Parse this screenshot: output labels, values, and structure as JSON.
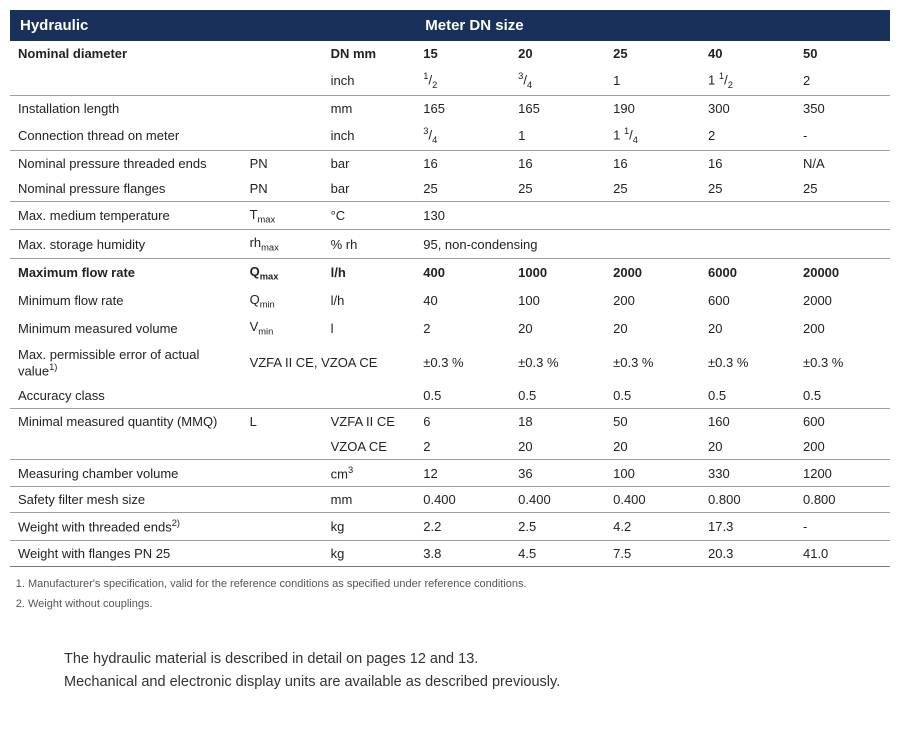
{
  "header": {
    "left": "Hydraulic",
    "right": "Meter DN size"
  },
  "colhead": {
    "label": "Nominal diameter",
    "unit_label": "DN mm",
    "inch_label": "inch",
    "dn": [
      "15",
      "20",
      "25",
      "40",
      "50"
    ],
    "inch": [
      "1/2",
      "3/4",
      "1",
      "1 1/2",
      "2"
    ]
  },
  "rows": {
    "instlen": {
      "label": "Installation length",
      "unit": "mm",
      "v": [
        "165",
        "165",
        "190",
        "300",
        "350"
      ]
    },
    "thread": {
      "label": "Connection thread on meter",
      "unit": "inch",
      "v": [
        "3/4",
        "1",
        "1 1/4",
        "2",
        "-"
      ]
    },
    "npt": {
      "label": "Nominal pressure threaded ends",
      "sym": "PN",
      "unit": "bar",
      "v": [
        "16",
        "16",
        "16",
        "16",
        "N/A"
      ]
    },
    "npf": {
      "label": "Nominal pressure flanges",
      "sym": "PN",
      "unit": "bar",
      "v": [
        "25",
        "25",
        "25",
        "25",
        "25"
      ]
    },
    "tmax": {
      "label": "Max. medium temperature",
      "sym": "T",
      "sub": "max",
      "unit": "°C",
      "span": "130"
    },
    "rh": {
      "label": "Max. storage humidity",
      "sym": "rh",
      "sub": "max",
      "unit": "% rh",
      "span": "95, non-condensing"
    },
    "qmax": {
      "label": "Maximum flow rate",
      "sym": "Q",
      "sub": "max",
      "unit": "l/h",
      "v": [
        "400",
        "1000",
        "2000",
        "6000",
        "20000"
      ]
    },
    "qmin": {
      "label": "Minimum flow rate",
      "sym": "Q",
      "sub": "min",
      "unit": "l/h",
      "v": [
        "40",
        "100",
        "200",
        "600",
        "2000"
      ]
    },
    "vmin": {
      "label": "Minimum measured volume",
      "sym": "V",
      "sub": "min",
      "unit": "l",
      "v": [
        "2",
        "20",
        "20",
        "20",
        "200"
      ]
    },
    "perr": {
      "label": "Max. permissible error of actual value",
      "sup": "1)",
      "sym": "VZFA II CE, VZOA CE",
      "v": [
        "±0.3 %",
        "±0.3 %",
        "±0.3 %",
        "±0.3 %",
        "±0.3 %"
      ]
    },
    "acc": {
      "label": "Accuracy class",
      "v": [
        "0.5",
        "0.5",
        "0.5",
        "0.5",
        "0.5"
      ]
    },
    "mmq1": {
      "label": "Minimal measured quantity (MMQ)",
      "sym": "L",
      "unit": "VZFA II CE",
      "v": [
        "6",
        "18",
        "50",
        "160",
        "600"
      ]
    },
    "mmq2": {
      "unit": "VZOA CE",
      "v": [
        "2",
        "20",
        "20",
        "20",
        "200"
      ]
    },
    "mcv": {
      "label": "Measuring chamber volume",
      "unit": "cm",
      "sup_unit": "3",
      "v": [
        "12",
        "36",
        "100",
        "330",
        "1200"
      ]
    },
    "mesh": {
      "label": "Safety filter mesh size",
      "unit": "mm",
      "v": [
        "0.400",
        "0.400",
        "0.400",
        "0.800",
        "0.800"
      ]
    },
    "wt": {
      "label": "Weight with threaded ends",
      "sup": "2)",
      "unit": "kg",
      "v": [
        "2.2",
        "2.5",
        "4.2",
        "17.3",
        "-"
      ]
    },
    "wf": {
      "label": "Weight with flanges PN 25",
      "unit": "kg",
      "v": [
        "3.8",
        "4.5",
        "7.5",
        "20.3",
        "41.0"
      ]
    }
  },
  "footnotes": [
    "Manufacturer's specification, valid for the reference conditions as specified under reference conditions.",
    "Weight without couplings."
  ],
  "body": [
    "The hydraulic material is described in detail on pages 12 and 13.",
    "Mechanical and electronic display units are available as described previously."
  ]
}
